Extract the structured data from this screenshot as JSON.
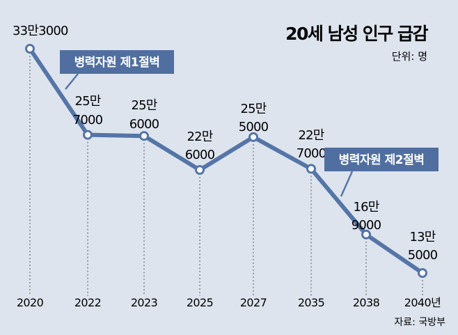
{
  "title": "20세 남성 인구 급감",
  "unit": "단위: 명",
  "source": "자료: 국방부",
  "colors": {
    "background": "#dde4ee",
    "line": "#5575a6",
    "marker_fill": "#ffffff",
    "badge_fill": "#506fa0",
    "badge_text": "#ffffff"
  },
  "annotations": {
    "cliff1": "병력자원 제1절벽",
    "cliff2": "병력자원 제2절벽"
  },
  "chart_data": {
    "type": "line",
    "categories": [
      "2020",
      "2022",
      "2023",
      "2025",
      "2027",
      "2035",
      "2038",
      "2040년"
    ],
    "values": [
      333000,
      257000,
      256000,
      226000,
      255000,
      227000,
      169000,
      135000
    ],
    "point_labels": [
      [
        "33만3000"
      ],
      [
        "25만",
        "7000"
      ],
      [
        "25만",
        "6000"
      ],
      [
        "22만",
        "6000"
      ],
      [
        "25만",
        "5000"
      ],
      [
        "22만",
        "7000"
      ],
      [
        "16만",
        "9000"
      ],
      [
        "13만",
        "5000"
      ]
    ],
    "title": "20세 남성 인구 급감",
    "xlabel": "",
    "ylabel": "",
    "grid": false,
    "legend": "none"
  }
}
